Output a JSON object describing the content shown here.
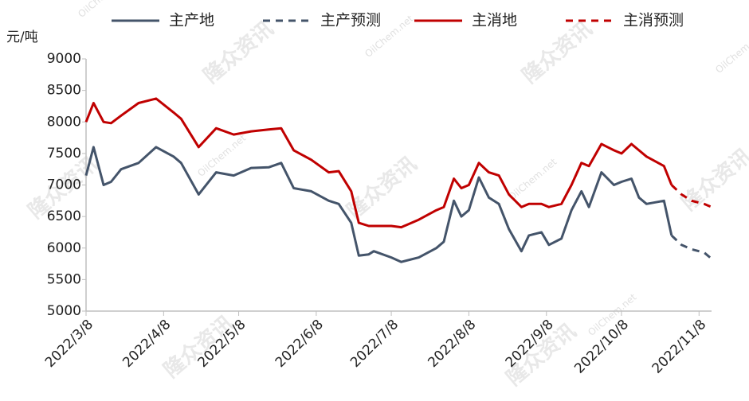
{
  "chart_data": {
    "type": "line",
    "y_label": "元/吨",
    "watermarks": [
      "隆众资讯",
      "OilChem.net"
    ],
    "x": [
      "2022/3/8",
      "2022/3/11",
      "2022/3/15",
      "2022/3/18",
      "2022/3/22",
      "2022/3/29",
      "2022/4/5",
      "2022/4/12",
      "2022/4/15",
      "2022/4/22",
      "2022/4/29",
      "2022/5/6",
      "2022/5/13",
      "2022/5/20",
      "2022/5/25",
      "2022/5/30",
      "2022/6/6",
      "2022/6/13",
      "2022/6/17",
      "2022/6/22",
      "2022/6/25",
      "2022/6/29",
      "2022/7/1",
      "2022/7/8",
      "2022/7/12",
      "2022/7/19",
      "2022/7/26",
      "2022/7/29",
      "2022/8/2",
      "2022/8/5",
      "2022/8/8",
      "2022/8/12",
      "2022/8/16",
      "2022/8/20",
      "2022/8/24",
      "2022/8/29",
      "2022/9/1",
      "2022/9/6",
      "2022/9/9",
      "2022/9/14",
      "2022/9/18",
      "2022/9/22",
      "2022/9/25",
      "2022/9/30",
      "2022/10/5",
      "2022/10/8",
      "2022/10/12",
      "2022/10/15",
      "2022/10/18",
      "2022/10/25",
      "2022/10/28",
      "2022/11/1",
      "2022/11/5",
      "2022/11/10",
      "2022/11/13"
    ],
    "series": [
      {
        "name": "主产地",
        "color": "#44546a",
        "style": "solid",
        "values": [
          7150,
          7600,
          7000,
          7050,
          7250,
          7350,
          7600,
          7450,
          7350,
          6850,
          7200,
          7150,
          7270,
          7280,
          7350,
          6950,
          6900,
          6750,
          6700,
          6400,
          5880,
          5900,
          5950,
          5850,
          5780,
          5850,
          6000,
          6100,
          6750,
          6500,
          6600,
          7120,
          6800,
          6700,
          6300,
          5950,
          6200,
          6250,
          6050,
          6150,
          6600,
          6900,
          6650,
          7200,
          7000,
          7050,
          7100,
          6800,
          6700,
          6750,
          6200,
          null,
          null,
          null,
          null
        ]
      },
      {
        "name": "主产预测",
        "color": "#44546a",
        "style": "dashed",
        "values": [
          null,
          null,
          null,
          null,
          null,
          null,
          null,
          null,
          null,
          null,
          null,
          null,
          null,
          null,
          null,
          null,
          null,
          null,
          null,
          null,
          null,
          null,
          null,
          null,
          null,
          null,
          null,
          null,
          null,
          null,
          null,
          null,
          null,
          null,
          null,
          null,
          null,
          null,
          null,
          null,
          null,
          null,
          null,
          null,
          null,
          null,
          null,
          null,
          null,
          null,
          6200,
          6050,
          5980,
          5930,
          5830
        ]
      },
      {
        "name": "主消地",
        "color": "#c00000",
        "style": "solid",
        "values": [
          8000,
          8300,
          8000,
          7980,
          8100,
          8300,
          8370,
          8150,
          8050,
          7600,
          7900,
          7800,
          7850,
          7880,
          7900,
          7550,
          7400,
          7200,
          7220,
          6900,
          6400,
          6350,
          6350,
          6350,
          6330,
          6450,
          6600,
          6650,
          7100,
          6950,
          7000,
          7350,
          7200,
          7150,
          6850,
          6650,
          6700,
          6700,
          6650,
          6700,
          7000,
          7350,
          7300,
          7650,
          7550,
          7500,
          7650,
          7550,
          7450,
          7300,
          7000,
          null,
          null,
          null,
          null
        ]
      },
      {
        "name": "主消预测",
        "color": "#c00000",
        "style": "dashed",
        "values": [
          null,
          null,
          null,
          null,
          null,
          null,
          null,
          null,
          null,
          null,
          null,
          null,
          null,
          null,
          null,
          null,
          null,
          null,
          null,
          null,
          null,
          null,
          null,
          null,
          null,
          null,
          null,
          null,
          null,
          null,
          null,
          null,
          null,
          null,
          null,
          null,
          null,
          null,
          null,
          null,
          null,
          null,
          null,
          null,
          null,
          null,
          null,
          null,
          null,
          null,
          7000,
          6850,
          6750,
          6700,
          6650
        ]
      }
    ],
    "xlim": [
      "2022/3/8",
      "2022/11/13"
    ],
    "xticks": [
      "2022/3/8",
      "2022/4/8",
      "2022/5/8",
      "2022/6/8",
      "2022/7/8",
      "2022/8/8",
      "2022/9/8",
      "2022/10/8",
      "2022/11/8"
    ],
    "ylim": [
      5000,
      9000
    ],
    "yticks": [
      5000,
      5500,
      6000,
      6500,
      7000,
      7500,
      8000,
      8500,
      9000
    ],
    "grid": false,
    "legend": "top"
  }
}
